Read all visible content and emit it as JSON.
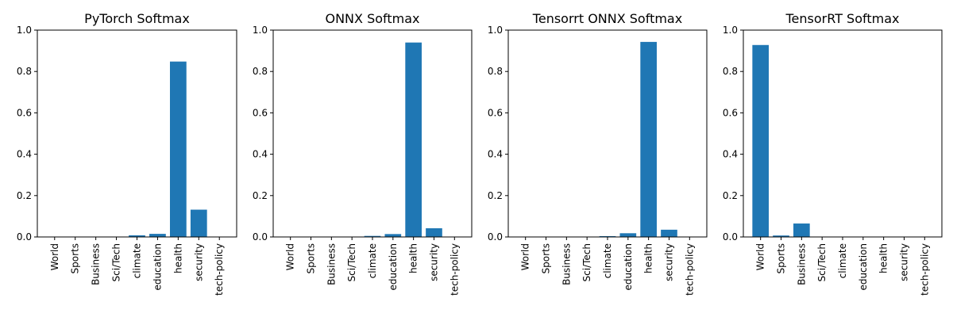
{
  "chart_data": [
    {
      "type": "bar",
      "title": "PyTorch Softmax",
      "categories": [
        "World",
        "Sports",
        "Business",
        "Sci/Tech",
        "climate",
        "education",
        "health",
        "security",
        "tech-policy"
      ],
      "values": [
        0.0005,
        0.0005,
        0.0005,
        0.001,
        0.008,
        0.015,
        0.848,
        0.132,
        0.0005
      ],
      "xlabel": "",
      "ylabel": "",
      "ylim": [
        0,
        1.0
      ],
      "yticks": [
        "0.0",
        "0.2",
        "0.4",
        "0.6",
        "0.8",
        "1.0"
      ],
      "grid": false
    },
    {
      "type": "bar",
      "title": "ONNX Softmax",
      "categories": [
        "World",
        "Sports",
        "Business",
        "Sci/Tech",
        "climate",
        "education",
        "health",
        "security",
        "tech-policy"
      ],
      "values": [
        0.0005,
        0.0005,
        0.0005,
        0.001,
        0.005,
        0.014,
        0.94,
        0.042,
        0.0005
      ],
      "xlabel": "",
      "ylabel": "",
      "ylim": [
        0,
        1.0
      ],
      "yticks": [
        "0.0",
        "0.2",
        "0.4",
        "0.6",
        "0.8",
        "1.0"
      ],
      "grid": false
    },
    {
      "type": "bar",
      "title": "Tensorrt ONNX Softmax",
      "categories": [
        "World",
        "Sports",
        "Business",
        "Sci/Tech",
        "climate",
        "education",
        "health",
        "security",
        "tech-policy"
      ],
      "values": [
        0.0005,
        0.0005,
        0.0005,
        0.001,
        0.004,
        0.018,
        0.943,
        0.035,
        0.0005
      ],
      "xlabel": "",
      "ylabel": "",
      "ylim": [
        0,
        1.0
      ],
      "yticks": [
        "0.0",
        "0.2",
        "0.4",
        "0.6",
        "0.8",
        "1.0"
      ],
      "grid": false
    },
    {
      "type": "bar",
      "title": "TensorRT Softmax",
      "categories": [
        "World",
        "Sports",
        "Business",
        "Sci/Tech",
        "climate",
        "education",
        "health",
        "security",
        "tech-policy"
      ],
      "values": [
        0.928,
        0.007,
        0.065,
        0.0005,
        0.0005,
        0.0005,
        0.0005,
        0.0005,
        0.0005
      ],
      "xlabel": "",
      "ylabel": "",
      "ylim": [
        0,
        1.0
      ],
      "yticks": [
        "0.0",
        "0.2",
        "0.4",
        "0.6",
        "0.8",
        "1.0"
      ],
      "grid": false
    }
  ],
  "colors": {
    "bar": "#1f77b4"
  }
}
